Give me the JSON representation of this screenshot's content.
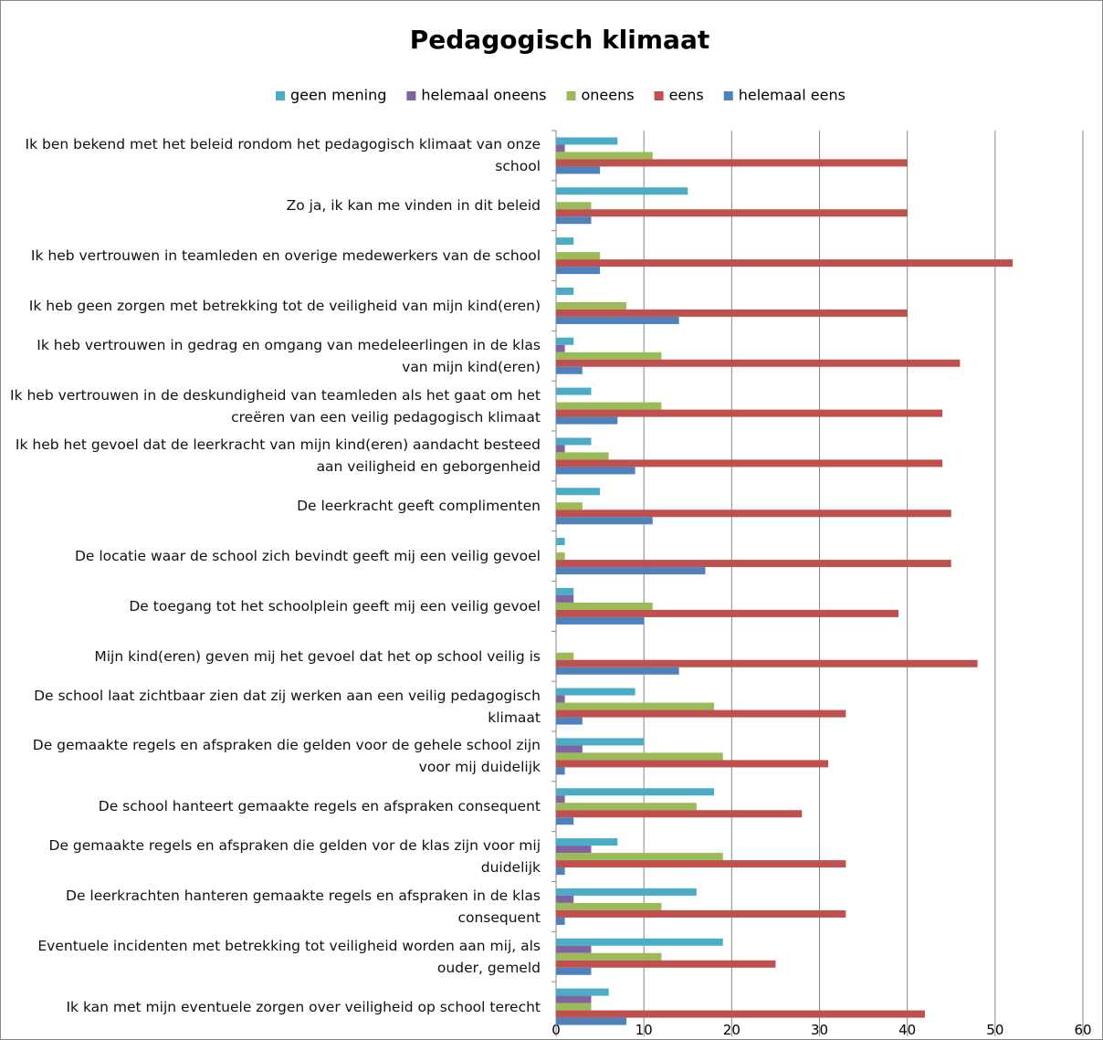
{
  "chart_data": {
    "type": "barh",
    "title": "Pedagogisch klimaat",
    "categories": [
      "Ik ben bekend met het beleid rondom het pedagogisch klimaat van onze school",
      "Zo ja, ik kan me vinden in dit beleid",
      "Ik heb vertrouwen in teamleden en overige medewerkers van de school",
      "Ik heb geen zorgen met betrekking tot de veiligheid van mijn kind(eren)",
      "Ik heb vertrouwen in gedrag en omgang van medeleerlingen in de klas van mijn kind(eren)",
      "Ik heb vertrouwen in de deskundigheid van teamleden als het gaat om het creëren van een veilig pedagogisch klimaat",
      "Ik heb het gevoel dat de leerkracht van mijn kind(eren) aandacht besteed aan veiligheid en geborgenheid",
      "De leerkracht geeft complimenten",
      "De locatie waar de school zich bevindt geeft mij een veilig gevoel",
      "De toegang tot het schoolplein geeft mij een veilig gevoel",
      "Mijn kind(eren) geven mij het gevoel dat het op school veilig is",
      "De school laat zichtbaar zien dat zij werken aan een veilig pedagogisch klimaat",
      "De gemaakte regels en afspraken die gelden voor de gehele school zijn voor mij duidelijk",
      "De school hanteert gemaakte regels en afspraken consequent",
      "De gemaakte regels en afspraken die gelden vor de klas zijn voor mij duidelijk",
      "De leerkrachten hanteren gemaakte regels en afspraken in de klas consequent",
      "Eventuele incidenten met betrekking tot veiligheid worden aan mij, als ouder, gemeld",
      "Ik kan met mijn eventuele zorgen over veiligheid op school terecht"
    ],
    "series": [
      {
        "name": "geen mening",
        "color": "#4bacc6",
        "values": [
          7,
          15,
          2,
          2,
          2,
          4,
          4,
          5,
          1,
          2,
          0,
          9,
          10,
          18,
          7,
          16,
          19,
          6
        ]
      },
      {
        "name": "helemaal oneens",
        "color": "#8064a2",
        "values": [
          1,
          0,
          0,
          0,
          1,
          0,
          1,
          0,
          0,
          2,
          0,
          1,
          3,
          1,
          4,
          2,
          4,
          4
        ]
      },
      {
        "name": "oneens",
        "color": "#9bbb59",
        "values": [
          11,
          4,
          5,
          8,
          12,
          12,
          6,
          3,
          1,
          11,
          2,
          18,
          19,
          16,
          19,
          12,
          12,
          4
        ]
      },
      {
        "name": "eens",
        "color": "#c0504d",
        "values": [
          40,
          40,
          52,
          40,
          46,
          44,
          44,
          45,
          45,
          39,
          48,
          33,
          31,
          28,
          33,
          33,
          25,
          42
        ]
      },
      {
        "name": "helemaal eens",
        "color": "#4f81bd",
        "values": [
          5,
          4,
          5,
          14,
          3,
          7,
          9,
          11,
          17,
          10,
          14,
          3,
          1,
          2,
          1,
          1,
          4,
          8
        ]
      }
    ],
    "xlim": [
      0,
      60
    ],
    "xticks": [
      0,
      10,
      20,
      30,
      40,
      50,
      60
    ],
    "grid": true,
    "legend": "top"
  }
}
